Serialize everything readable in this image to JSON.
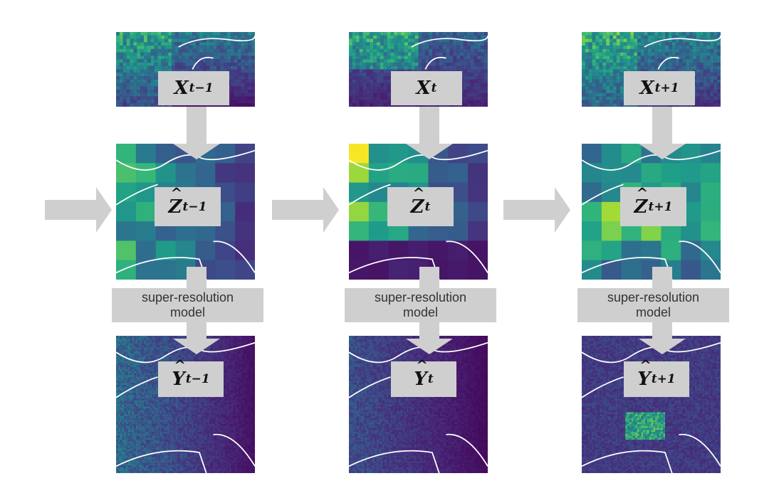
{
  "columns": [
    {
      "x_label": "X",
      "x_sub": "t−1",
      "z_label": "Z",
      "z_sub": "t−1",
      "y_label": "Y",
      "y_sub": "t−1"
    },
    {
      "x_label": "X",
      "x_sub": "t",
      "z_label": "Z",
      "z_sub": "t",
      "y_label": "Y",
      "y_sub": "t"
    },
    {
      "x_label": "X",
      "x_sub": "t+1",
      "z_label": "Z",
      "z_sub": "t+1",
      "y_label": "Y",
      "y_sub": "t+1"
    }
  ],
  "model_label_line1": "super-resolution",
  "model_label_line2": "model",
  "colors": {
    "box": "#cfcfcf",
    "colormap": "viridis",
    "coastline": "#ffffff"
  }
}
